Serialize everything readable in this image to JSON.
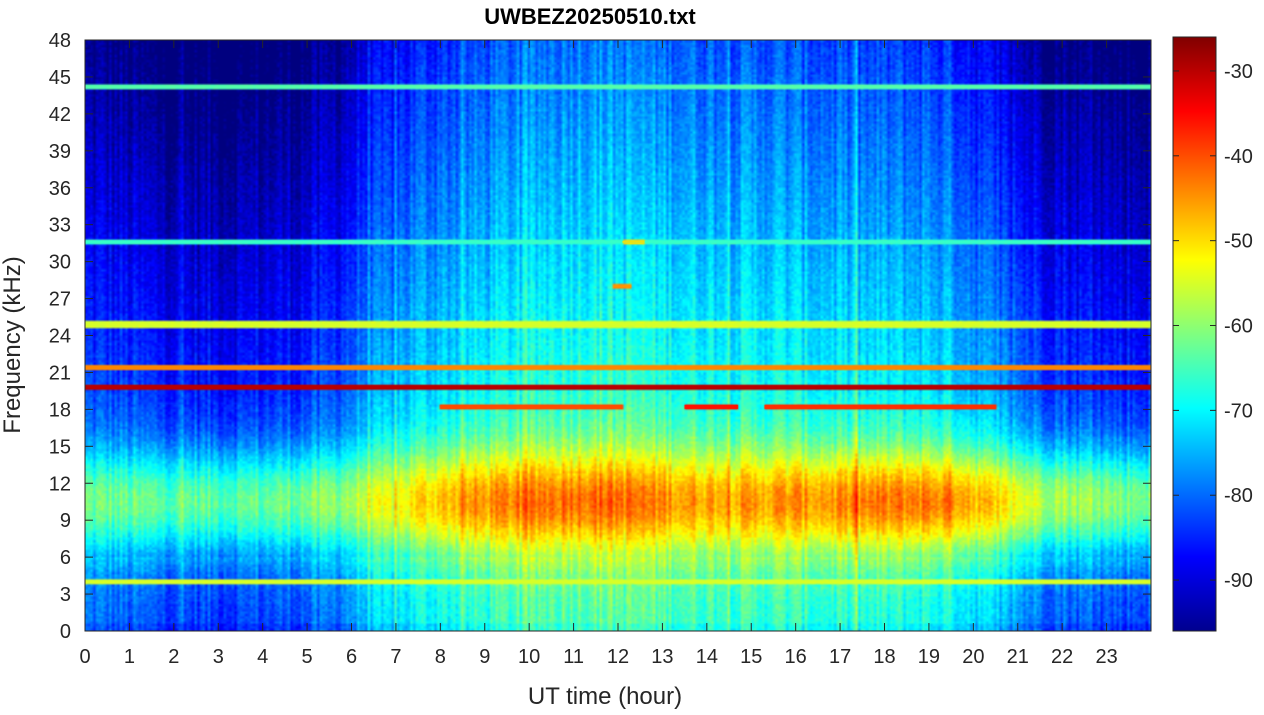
{
  "chart_data": {
    "type": "heatmap",
    "title": "UWBEZ20250510.txt",
    "xlabel": "UT time (hour)",
    "ylabel": "Frequency (kHz)",
    "xlim": [
      0,
      24
    ],
    "ylim": [
      0,
      48
    ],
    "clim": [
      -96,
      -26
    ],
    "colormap": "jet",
    "grid": false,
    "colorbar": "right",
    "x_ticks": [
      0,
      1,
      2,
      3,
      4,
      5,
      6,
      7,
      8,
      9,
      10,
      11,
      12,
      13,
      14,
      15,
      16,
      17,
      18,
      19,
      20,
      21,
      22,
      23
    ],
    "y_ticks": [
      0,
      3,
      6,
      9,
      12,
      15,
      18,
      21,
      24,
      27,
      30,
      33,
      36,
      39,
      42,
      45,
      48
    ],
    "colorbar_ticks": [
      -30,
      -40,
      -50,
      -60,
      -70,
      -80,
      -90
    ],
    "features": {
      "background_level_by_hour": [
        -82,
        -84,
        -85,
        -85,
        -84,
        -82,
        -76,
        -72,
        -70,
        -68,
        -66,
        -65,
        -66,
        -67,
        -68,
        -68,
        -69,
        -70,
        -70,
        -71,
        -76,
        -81,
        -83,
        -84
      ],
      "band_9khz_peak_by_hour": [
        -62,
        -63,
        -63,
        -63,
        -62,
        -60,
        -56,
        -50,
        -46,
        -44,
        -42,
        -41,
        -43,
        -45,
        -46,
        -45,
        -45,
        -44,
        -43,
        -43,
        -50,
        -56,
        -59,
        -61
      ],
      "narrowband_lines": [
        {
          "freq_khz": 19.8,
          "level": -30,
          "start_hour": 0,
          "end_hour": 24
        },
        {
          "freq_khz": 18.2,
          "level": -40,
          "start_hour": 8,
          "end_hour": 12.1
        },
        {
          "freq_khz": 18.2,
          "level": -36,
          "start_hour": 13.5,
          "end_hour": 14.7
        },
        {
          "freq_khz": 18.2,
          "level": -38,
          "start_hour": 15.3,
          "end_hour": 20.5
        },
        {
          "freq_khz": 21.4,
          "level": -44,
          "start_hour": 0,
          "end_hour": 24
        },
        {
          "freq_khz": 24.9,
          "level": -55,
          "start_hour": 0,
          "end_hour": 24
        },
        {
          "freq_khz": 44.2,
          "level": -64,
          "start_hour": 0,
          "end_hour": 24
        },
        {
          "freq_khz": 31.6,
          "level": -66,
          "start_hour": 0,
          "end_hour": 24
        },
        {
          "freq_khz": 4.0,
          "level": -55,
          "start_hour": 0,
          "end_hour": 24
        },
        {
          "freq_khz": 28.0,
          "level": -45,
          "start_hour": 11.9,
          "end_hour": 12.3
        },
        {
          "freq_khz": 31.6,
          "level": -50,
          "start_hour": 12.1,
          "end_hour": 12.6
        }
      ]
    }
  }
}
